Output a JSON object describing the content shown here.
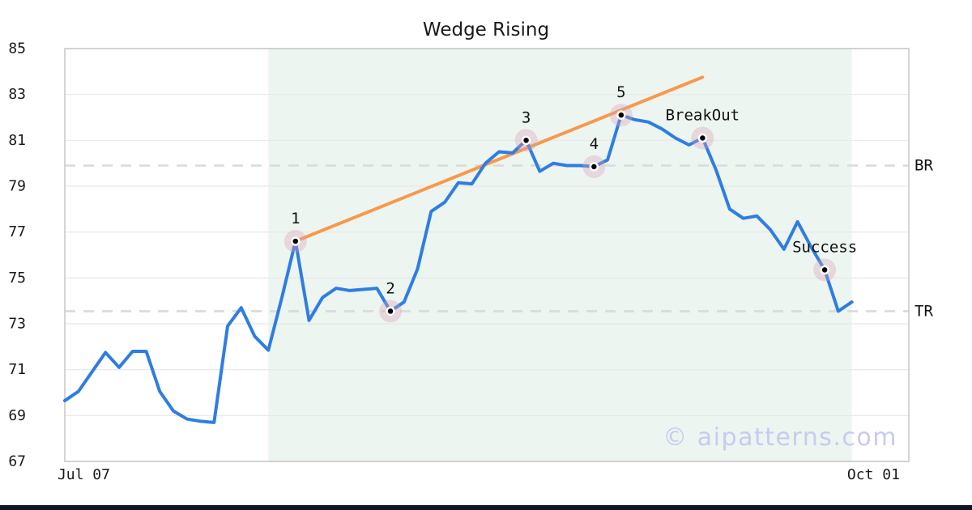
{
  "title": "Wedge Rising",
  "watermark": "© aipatterns.com",
  "colors": {
    "price_line": "#2e7de2",
    "trend_line": "#f8994a",
    "pattern_region": "#edf5f1",
    "marker_halo": "rgba(216,160,178,0.35)",
    "marker_dot": "#000000",
    "marker_edge": "#ffffff",
    "level_dash": "#d9dbda",
    "grid": "#e7e7e7",
    "spine": "#c6c6c6",
    "text": "#1a1a1a",
    "watermark_color": "#c7cbf0",
    "footer_bar": "#0f1726"
  },
  "chart_data": {
    "type": "line",
    "title": "Wedge Rising",
    "x_axis": {
      "index_range": [
        0,
        62.2
      ],
      "ticks": [
        {
          "label": "Jul 07",
          "index": 1.4
        },
        {
          "label": "Oct 01",
          "index": 59.6
        }
      ]
    },
    "y_axis": {
      "range": [
        67,
        85
      ],
      "ticks": [
        85,
        83,
        81,
        79,
        77,
        75,
        73,
        71,
        69,
        67
      ]
    },
    "series": [
      {
        "name": "price",
        "values": [
          69.65,
          70.05,
          70.9,
          71.75,
          71.1,
          71.8,
          71.8,
          70.05,
          69.2,
          68.85,
          68.75,
          68.7,
          72.9,
          73.7,
          72.45,
          71.85,
          74.15,
          76.6,
          73.15,
          74.15,
          74.55,
          74.45,
          74.5,
          74.55,
          73.55,
          73.95,
          75.4,
          77.9,
          78.3,
          79.15,
          79.1,
          80.0,
          80.5,
          80.45,
          81.0,
          79.65,
          80.0,
          79.9,
          79.9,
          79.85,
          80.15,
          82.1,
          81.9,
          81.8,
          81.5,
          81.1,
          80.8,
          81.1,
          79.7,
          78.0,
          77.6,
          77.7,
          77.1,
          76.25,
          77.45,
          76.35,
          75.35,
          73.55,
          73.95
        ]
      }
    ],
    "trend_line": {
      "from": {
        "index": 17,
        "value": 76.6
      },
      "to": {
        "index": 47,
        "value": 83.75
      }
    },
    "levels": [
      {
        "label": "BR",
        "value": 79.9
      },
      {
        "label": "TR",
        "value": 73.55
      }
    ],
    "pattern_region": {
      "start_index": 15,
      "end_index": 58
    },
    "annotations": [
      {
        "label": "1",
        "index": 17,
        "value": 76.6
      },
      {
        "label": "2",
        "index": 24,
        "value": 73.55
      },
      {
        "label": "3",
        "index": 34,
        "value": 81.0
      },
      {
        "label": "4",
        "index": 39,
        "value": 79.85
      },
      {
        "label": "5",
        "index": 41,
        "value": 82.1
      },
      {
        "label": "BreakOut",
        "index": 47,
        "value": 81.1
      },
      {
        "label": "Success",
        "index": 56,
        "value": 75.35
      }
    ],
    "legend_position": "none",
    "grid": true
  }
}
